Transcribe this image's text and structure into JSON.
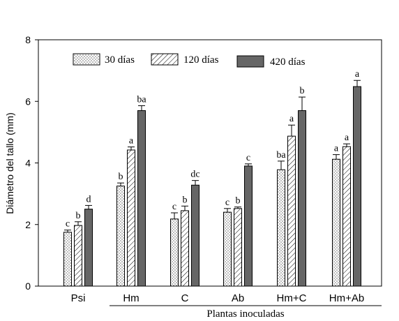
{
  "chart_data": {
    "type": "bar",
    "xlabel": "Plantas inoculadas",
    "ylabel": "Diámetro del tallo (mm)",
    "ylim": [
      0,
      8
    ],
    "yticks": [
      0,
      2,
      4,
      6,
      8
    ],
    "grid": false,
    "legend_position": "top-left",
    "categories": [
      "Psi",
      "Hm",
      "C",
      "Ab",
      "Hm+C",
      "Hm+Ab"
    ],
    "series": [
      {
        "name": "30 días",
        "pattern": "dotted",
        "values": [
          1.75,
          3.25,
          2.18,
          2.4,
          3.78,
          4.12
        ],
        "errors": [
          0.07,
          0.1,
          0.2,
          0.12,
          0.28,
          0.15
        ],
        "letters": [
          "c",
          "b",
          "c",
          "c",
          "ba",
          "a"
        ]
      },
      {
        "name": "120 días",
        "pattern": "hatched",
        "values": [
          1.97,
          4.42,
          2.45,
          2.52,
          4.87,
          4.53
        ],
        "errors": [
          0.12,
          0.1,
          0.15,
          0.05,
          0.36,
          0.09
        ],
        "letters": [
          "b",
          "a",
          "b",
          "b",
          "a",
          "a"
        ]
      },
      {
        "name": "420 días",
        "pattern": "solid",
        "color": "#666666",
        "values": [
          2.5,
          5.7,
          3.28,
          3.9,
          5.7,
          6.48
        ],
        "errors": [
          0.12,
          0.16,
          0.15,
          0.07,
          0.44,
          0.2
        ],
        "letters": [
          "d",
          "ba",
          "dc",
          "c",
          "b",
          "a"
        ]
      }
    ]
  }
}
